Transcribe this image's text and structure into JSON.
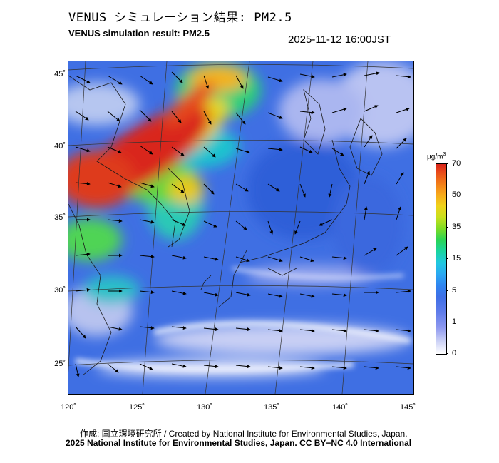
{
  "header": {
    "title_jp": "VENUS シミュレーション結果: PM2.5",
    "title_en": "VENUS simulation result: PM2.5",
    "datetime": "2025-11-12 16:00JST"
  },
  "map": {
    "latitude_labels": [
      "45˚",
      "40˚",
      "35˚",
      "30˚",
      "25˚"
    ],
    "longitude_labels": [
      "120˚",
      "125˚",
      "130˚",
      "135˚",
      "140˚",
      "145˚"
    ],
    "extent": {
      "lon_min": 120,
      "lon_max": 145,
      "lat_min": 23,
      "lat_max": 46
    },
    "overlays": [
      "pm25-concentration-field",
      "wind-vectors",
      "coastlines",
      "graticule"
    ]
  },
  "colorbar": {
    "unit": "μg/m",
    "unit_superscript": "3",
    "labels": [
      "70",
      "50",
      "35",
      "15",
      "5",
      "1",
      "0"
    ],
    "colors": {
      "low": "#ffffff",
      "blue": "#3e6fe6",
      "cyan": "#20c8e0",
      "green": "#2ad455",
      "yellow": "#f0d21a",
      "high": "#d8241a"
    }
  },
  "footer": {
    "credit_line_1": "作成: 国立環境研究所 / Created by National Institute for Environmental Studies, Japan.",
    "credit_line_2": "2025 National Institute for Environmental Studies, Japan. CC BY−NC 4.0 International"
  }
}
